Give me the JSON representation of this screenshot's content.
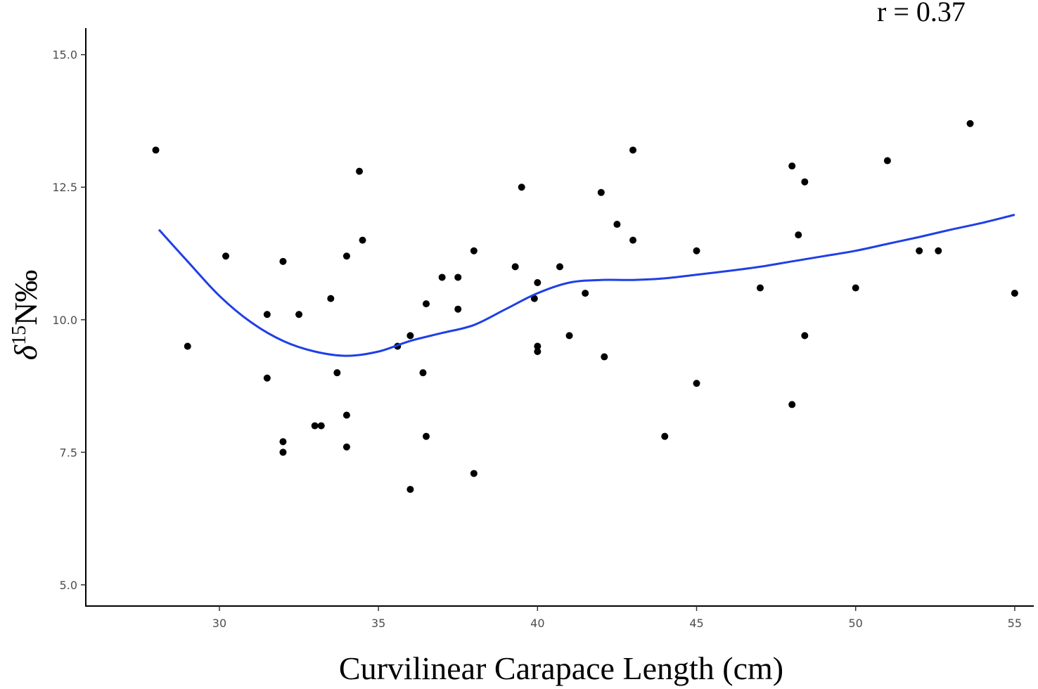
{
  "chart_data": {
    "type": "scatter",
    "xlabel": "Curvilinear Carapace Length (cm)",
    "ylabel_main": "δ",
    "ylabel_sup": "15",
    "ylabel_tail": "N‰",
    "annotation": "r = 0.37",
    "xlim": [
      25.8,
      55.6
    ],
    "ylim": [
      4.6,
      15.5
    ],
    "xticks": [
      30,
      35,
      40,
      45,
      50,
      55
    ],
    "xtick_labels": [
      "30",
      "35",
      "40",
      "45",
      "50",
      "55"
    ],
    "yticks": [
      5.0,
      7.5,
      10.0,
      12.5,
      15.0
    ],
    "ytick_labels": [
      "5.0",
      "7.5",
      "10.0",
      "12.5",
      "15.0"
    ],
    "grid": false,
    "point_color": "#000000",
    "line_color": "#1f3fe6",
    "points": [
      {
        "x": 28.0,
        "y": 13.2
      },
      {
        "x": 29.0,
        "y": 9.5
      },
      {
        "x": 30.2,
        "y": 11.2
      },
      {
        "x": 31.5,
        "y": 10.1
      },
      {
        "x": 31.5,
        "y": 8.9
      },
      {
        "x": 32.0,
        "y": 11.1
      },
      {
        "x": 32.0,
        "y": 7.7
      },
      {
        "x": 32.0,
        "y": 7.5
      },
      {
        "x": 32.5,
        "y": 10.1
      },
      {
        "x": 33.0,
        "y": 8.0
      },
      {
        "x": 33.2,
        "y": 8.0
      },
      {
        "x": 33.5,
        "y": 10.4
      },
      {
        "x": 33.7,
        "y": 9.0
      },
      {
        "x": 34.0,
        "y": 11.2
      },
      {
        "x": 34.0,
        "y": 8.2
      },
      {
        "x": 34.0,
        "y": 7.6
      },
      {
        "x": 34.4,
        "y": 12.8
      },
      {
        "x": 34.5,
        "y": 11.5
      },
      {
        "x": 35.6,
        "y": 9.5
      },
      {
        "x": 36.0,
        "y": 9.7
      },
      {
        "x": 36.0,
        "y": 6.8
      },
      {
        "x": 36.4,
        "y": 9.0
      },
      {
        "x": 36.5,
        "y": 10.3
      },
      {
        "x": 36.5,
        "y": 7.8
      },
      {
        "x": 37.0,
        "y": 10.8
      },
      {
        "x": 37.5,
        "y": 10.8
      },
      {
        "x": 37.5,
        "y": 10.2
      },
      {
        "x": 38.0,
        "y": 11.3
      },
      {
        "x": 38.0,
        "y": 7.1
      },
      {
        "x": 39.3,
        "y": 11.0
      },
      {
        "x": 39.5,
        "y": 12.5
      },
      {
        "x": 39.9,
        "y": 10.4
      },
      {
        "x": 40.0,
        "y": 10.7
      },
      {
        "x": 40.0,
        "y": 9.5
      },
      {
        "x": 40.0,
        "y": 9.4
      },
      {
        "x": 40.7,
        "y": 11.0
      },
      {
        "x": 41.0,
        "y": 9.7
      },
      {
        "x": 41.5,
        "y": 10.5
      },
      {
        "x": 42.0,
        "y": 12.4
      },
      {
        "x": 42.1,
        "y": 9.3
      },
      {
        "x": 42.5,
        "y": 11.8
      },
      {
        "x": 43.0,
        "y": 13.2
      },
      {
        "x": 43.0,
        "y": 11.5
      },
      {
        "x": 44.0,
        "y": 7.8
      },
      {
        "x": 45.0,
        "y": 11.3
      },
      {
        "x": 45.0,
        "y": 8.8
      },
      {
        "x": 47.0,
        "y": 10.6
      },
      {
        "x": 48.0,
        "y": 12.9
      },
      {
        "x": 48.0,
        "y": 8.4
      },
      {
        "x": 48.2,
        "y": 11.6
      },
      {
        "x": 48.4,
        "y": 12.6
      },
      {
        "x": 48.4,
        "y": 9.7
      },
      {
        "x": 50.0,
        "y": 10.6
      },
      {
        "x": 51.0,
        "y": 13.0
      },
      {
        "x": 52.0,
        "y": 11.3
      },
      {
        "x": 52.6,
        "y": 11.3
      },
      {
        "x": 53.6,
        "y": 13.7
      },
      {
        "x": 55.0,
        "y": 10.5
      }
    ],
    "smooth_curve": [
      {
        "x": 28.1,
        "y": 11.7
      },
      {
        "x": 29.0,
        "y": 11.1
      },
      {
        "x": 30.0,
        "y": 10.45
      },
      {
        "x": 31.0,
        "y": 9.95
      },
      {
        "x": 32.0,
        "y": 9.6
      },
      {
        "x": 33.0,
        "y": 9.4
      },
      {
        "x": 34.0,
        "y": 9.32
      },
      {
        "x": 35.0,
        "y": 9.4
      },
      {
        "x": 36.0,
        "y": 9.6
      },
      {
        "x": 37.0,
        "y": 9.75
      },
      {
        "x": 38.0,
        "y": 9.9
      },
      {
        "x": 39.0,
        "y": 10.2
      },
      {
        "x": 40.0,
        "y": 10.5
      },
      {
        "x": 41.0,
        "y": 10.7
      },
      {
        "x": 42.0,
        "y": 10.75
      },
      {
        "x": 43.0,
        "y": 10.75
      },
      {
        "x": 44.0,
        "y": 10.78
      },
      {
        "x": 45.0,
        "y": 10.85
      },
      {
        "x": 46.0,
        "y": 10.92
      },
      {
        "x": 47.0,
        "y": 11.0
      },
      {
        "x": 48.0,
        "y": 11.1
      },
      {
        "x": 49.0,
        "y": 11.2
      },
      {
        "x": 50.0,
        "y": 11.3
      },
      {
        "x": 51.0,
        "y": 11.43
      },
      {
        "x": 52.0,
        "y": 11.56
      },
      {
        "x": 53.0,
        "y": 11.7
      },
      {
        "x": 54.0,
        "y": 11.83
      },
      {
        "x": 55.0,
        "y": 11.98
      }
    ]
  }
}
